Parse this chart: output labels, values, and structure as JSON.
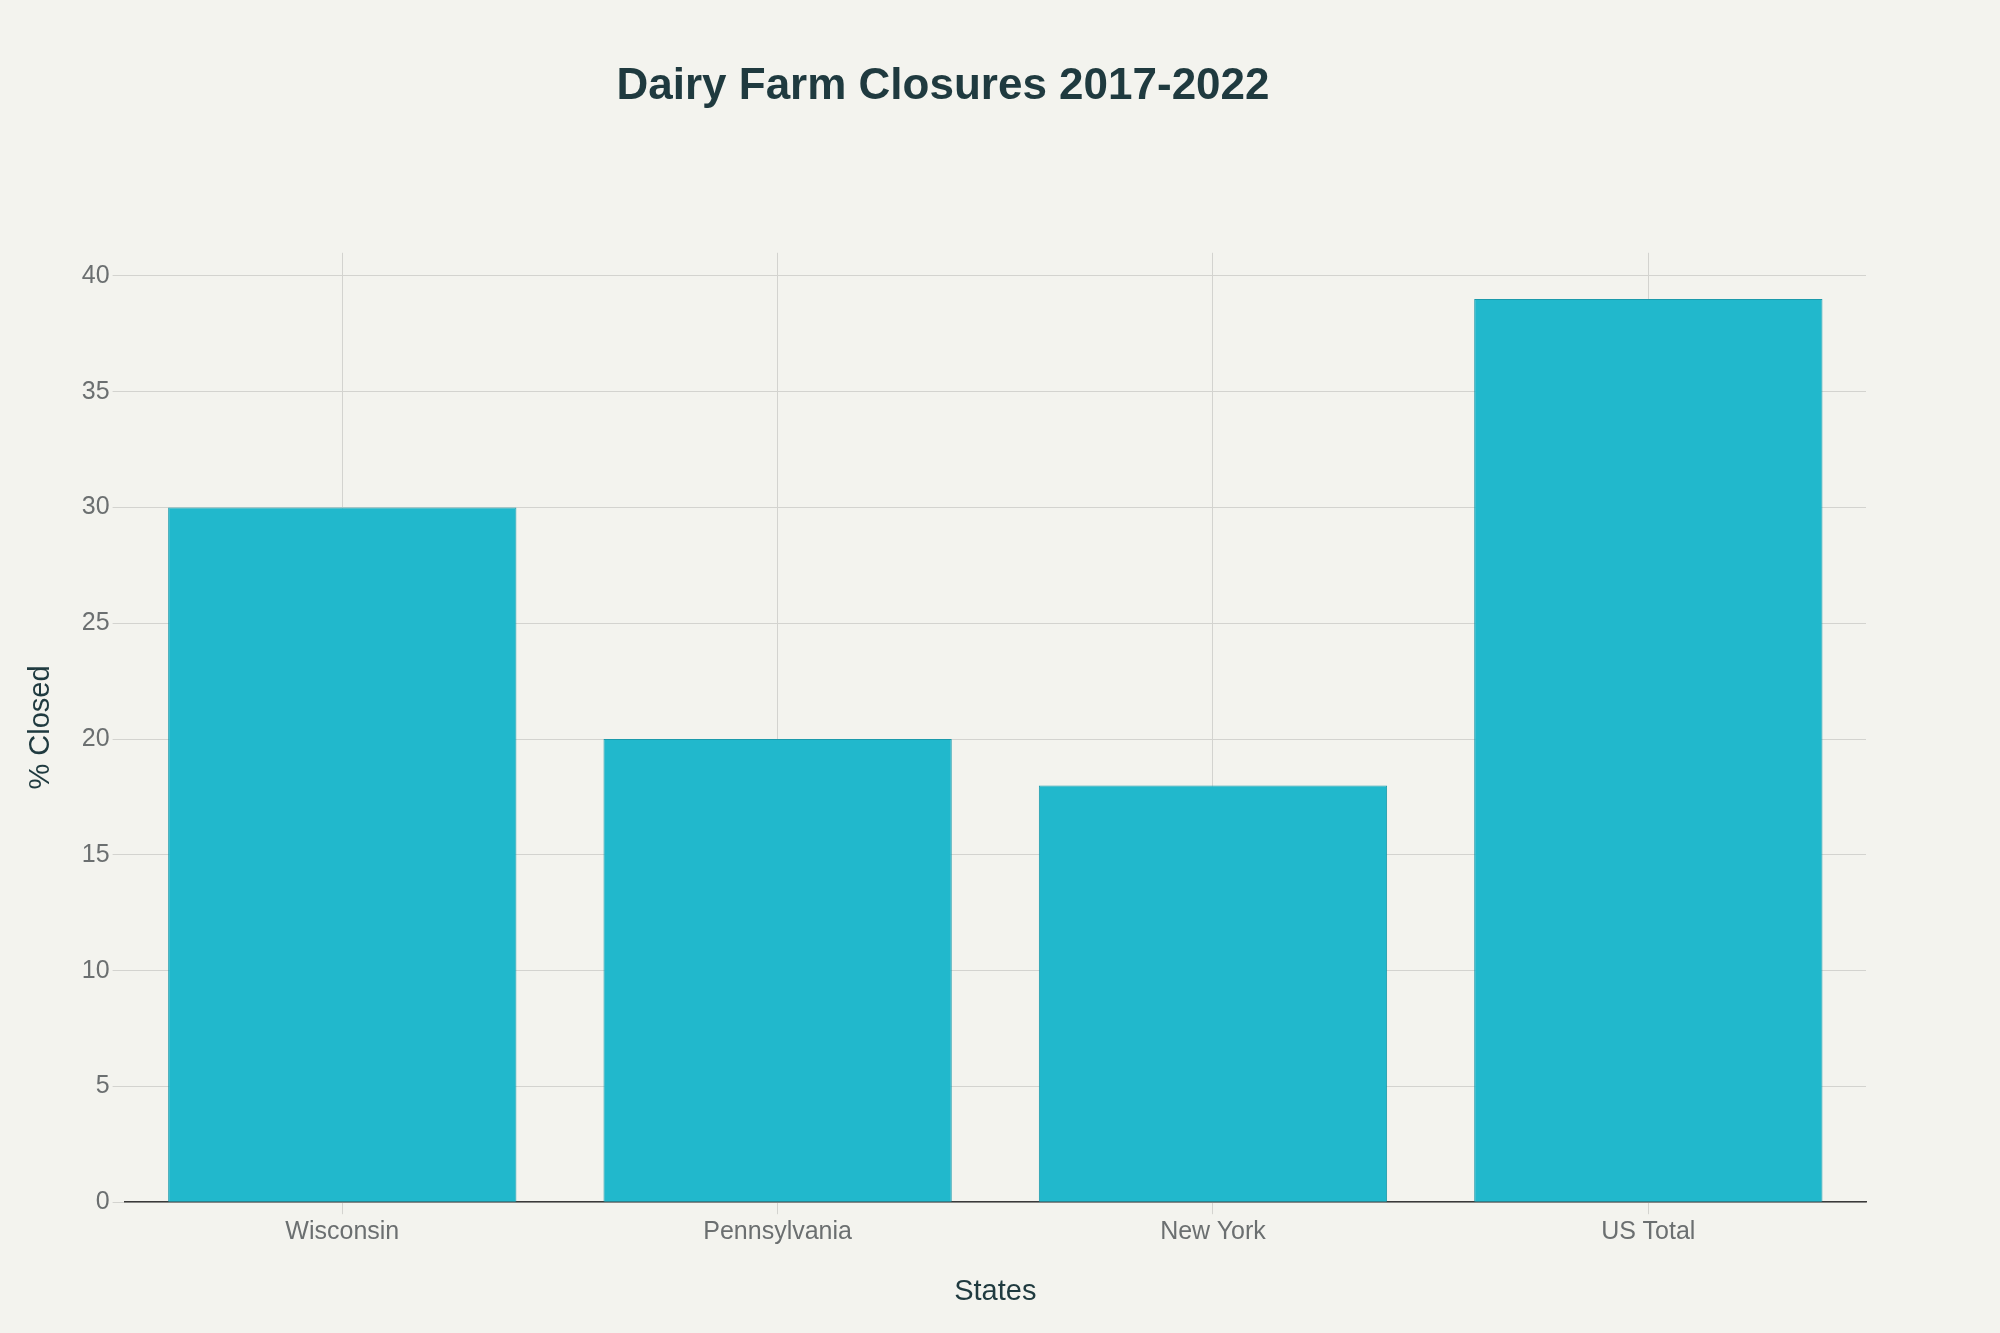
{
  "chart_data": {
    "type": "bar",
    "title": "Dairy Farm Closures 2017-2022",
    "xlabel": "States",
    "ylabel": "% Closed",
    "categories": [
      "Wisconsin",
      "Pennsylvania",
      "New York",
      "US Total"
    ],
    "values": [
      30,
      20,
      18,
      39
    ],
    "color": "#21b8cc",
    "ylim": [
      0,
      41
    ],
    "yticks": [
      0,
      5,
      10,
      15,
      20,
      25,
      30,
      35,
      40
    ],
    "grid": true
  }
}
